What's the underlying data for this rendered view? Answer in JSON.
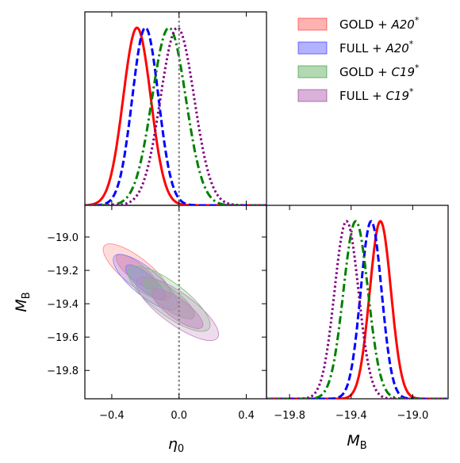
{
  "chart_data": {
    "type": "corner",
    "parameters": [
      "eta0",
      "MB"
    ],
    "legend": {
      "placement": "top-right",
      "entries": [
        {
          "base": "GOLD + ",
          "ital": "A20",
          "sup": "*",
          "color": "#ff0000",
          "line": "solid"
        },
        {
          "base": "FULL + ",
          "ital": "A20",
          "sup": "*",
          "color": "#0000ff",
          "line": "dashed"
        },
        {
          "base": "GOLD + ",
          "ital": "C19",
          "sup": "*",
          "color": "#008000",
          "line": "dashdot"
        },
        {
          "base": "FULL + ",
          "ital": "C19",
          "sup": "*",
          "color": "#800080",
          "line": "dotted"
        }
      ]
    },
    "axes": {
      "eta0": {
        "label_base": "η",
        "label_sub": "0",
        "lim": [
          -0.56,
          0.52
        ],
        "ticks": [
          -0.4,
          0.0,
          0.4
        ],
        "tick_labels": [
          "−0.4",
          "0.0",
          "0.4"
        ]
      },
      "MB": {
        "label_base": "M",
        "label_sub": "B",
        "lim": [
          -19.97,
          -18.81
        ],
        "ticks": [
          -19.8,
          -19.6,
          -19.4,
          -19.2,
          -19.0
        ],
        "tick_labels": [
          "−19.8",
          "−19.6",
          "−19.4",
          "−19.2",
          "−19.0"
        ],
        "diag_lim": [
          -19.95,
          -18.77
        ],
        "diag_ticks": [
          -19.8,
          -19.4,
          -19.0
        ],
        "diag_tick_labels": [
          "−19.8",
          "−19.4",
          "−19.0"
        ]
      }
    },
    "reference_line": {
      "eta0": 0.0,
      "color": "#808080",
      "style": "dotted"
    },
    "series": [
      {
        "name": "GOLD + A20*",
        "color": "#ff0000",
        "line": "solid",
        "eta0_mean": -0.25,
        "eta0_sd": 0.082,
        "MB_mean": -19.21,
        "MB_sd": 0.069,
        "corr": -0.8,
        "fill": "#ff8080"
      },
      {
        "name": "FULL + A20*",
        "color": "#0000ff",
        "line": "dashed",
        "eta0_mean": -0.2,
        "eta0_sd": 0.078,
        "MB_mean": -19.27,
        "MB_sd": 0.068,
        "corr": -0.8,
        "fill": "#8080ff"
      },
      {
        "name": "GOLD + C19*",
        "color": "#008000",
        "line": "dashdot",
        "eta0_mean": -0.06,
        "eta0_sd": 0.1,
        "MB_mean": -19.37,
        "MB_sd": 0.08,
        "corr": -0.8,
        "fill": "#80c080"
      },
      {
        "name": "FULL + C19*",
        "color": "#800080",
        "line": "dotted",
        "eta0_mean": -0.01,
        "eta0_sd": 0.1,
        "MB_mean": -19.43,
        "MB_sd": 0.078,
        "corr": -0.8,
        "fill": "#c080c0"
      }
    ],
    "grid": false
  }
}
